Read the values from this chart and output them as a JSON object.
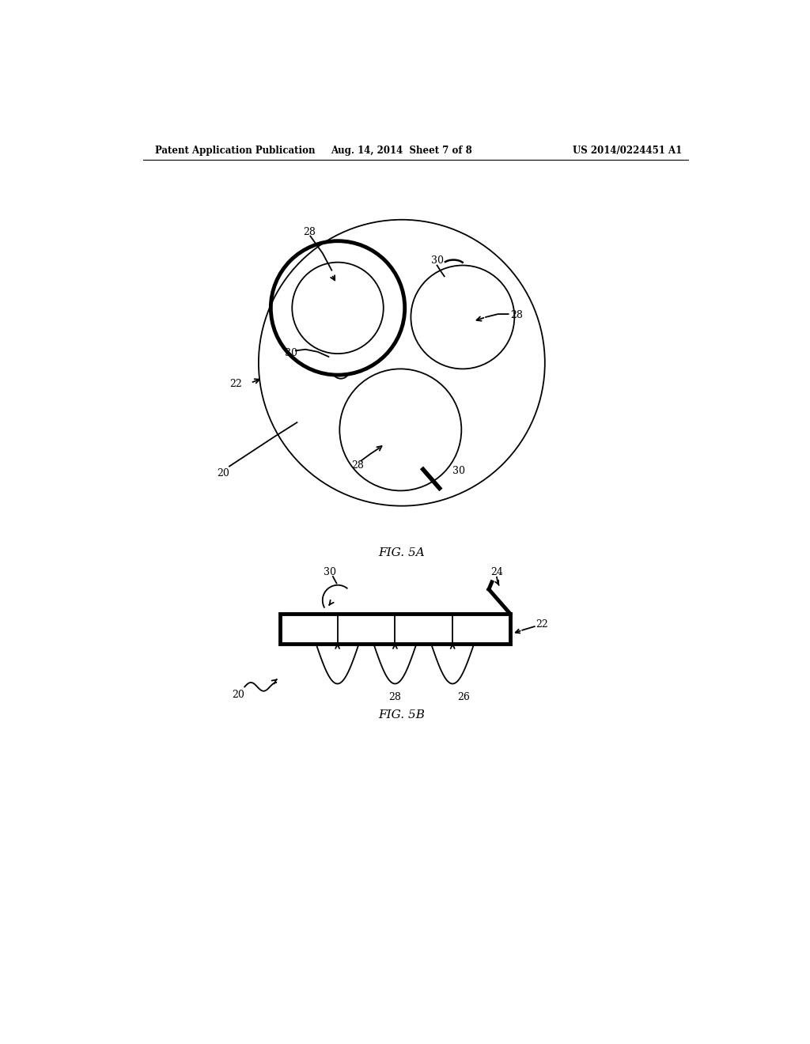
{
  "bg_color": "#ffffff",
  "header_left": "Patent Application Publication",
  "header_mid": "Aug. 14, 2014  Sheet 7 of 8",
  "header_right": "US 2014/0224451 A1",
  "fig5a_label": "FIG. 5A",
  "fig5b_label": "FIG. 5B",
  "line_color": "#000000",
  "thick_lw": 3.5,
  "thin_lw": 1.3,
  "header_lw": 0.8
}
